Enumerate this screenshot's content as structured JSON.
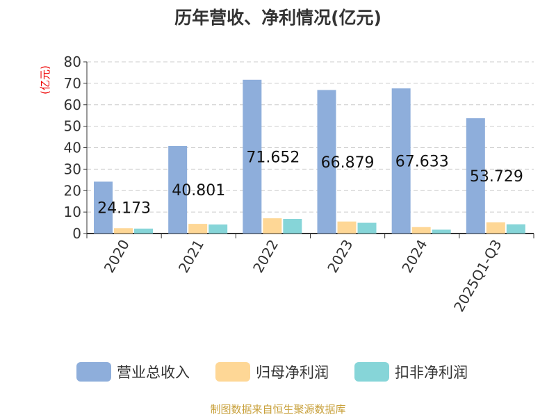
{
  "chart_data": {
    "type": "bar",
    "title": "历年营收、净利情况(亿元)",
    "ylabel": "(亿元)",
    "ylim": [
      0,
      80
    ],
    "yticks": [
      0,
      10,
      20,
      30,
      40,
      50,
      60,
      70,
      80
    ],
    "grid": true,
    "legend_placement": "bottom",
    "categories": [
      "2020",
      "2021",
      "2022",
      "2023",
      "2024",
      "2025Q1-Q3"
    ],
    "series": [
      {
        "name": "营业总收入",
        "color": "#8eaedb",
        "values": [
          24.173,
          40.801,
          71.652,
          66.879,
          67.633,
          53.729
        ],
        "labels": [
          "24.173",
          "40.801",
          "71.652",
          "66.879",
          "67.633",
          "53.729"
        ]
      },
      {
        "name": "归母净利润",
        "color": "#fed796",
        "values": [
          2.5,
          4.5,
          7.1,
          5.6,
          3.0,
          5.2
        ]
      },
      {
        "name": "扣非净利润",
        "color": "#86d5d8",
        "values": [
          2.3,
          4.2,
          6.8,
          5.0,
          1.8,
          4.3
        ]
      }
    ]
  },
  "source": "制图数据来自恒生聚源数据库"
}
